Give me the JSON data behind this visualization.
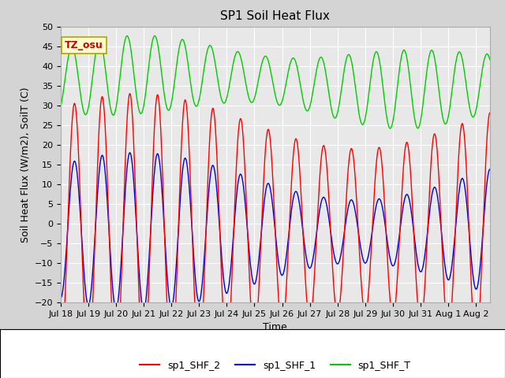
{
  "title": "SP1 Soil Heat Flux",
  "xlabel": "Time",
  "ylabel": "Soil Heat Flux (W/m2), SoilT (C)",
  "ylim": [
    -20,
    50
  ],
  "yticks": [
    -20,
    -15,
    -10,
    -5,
    0,
    5,
    10,
    15,
    20,
    25,
    30,
    35,
    40,
    45,
    50
  ],
  "xtick_labels": [
    "Jul 18",
    "Jul 19",
    "Jul 20",
    "Jul 21",
    "Jul 22",
    "Jul 23",
    "Jul 24",
    "Jul 25",
    "Jul 26",
    "Jul 27",
    "Jul 28",
    "Jul 29",
    "Jul 30",
    "Jul 31",
    "Aug 1",
    "Aug 2"
  ],
  "color_shf2": "#ff0000",
  "color_shf1": "#0000dd",
  "color_shfT": "#00cc00",
  "fig_bg_color": "#d4d4d4",
  "plot_bg_color": "#e8e8e8",
  "legend_labels": [
    "sp1_SHF_2",
    "sp1_SHF_1",
    "sp1_SHF_T"
  ],
  "annotation_text": "TZ_osu",
  "annotation_color": "#cc0000",
  "annotation_bg": "#ffffcc",
  "annotation_border": "#aaa800",
  "title_fontsize": 11,
  "axis_label_fontsize": 9,
  "tick_fontsize": 8,
  "legend_fontsize": 9
}
